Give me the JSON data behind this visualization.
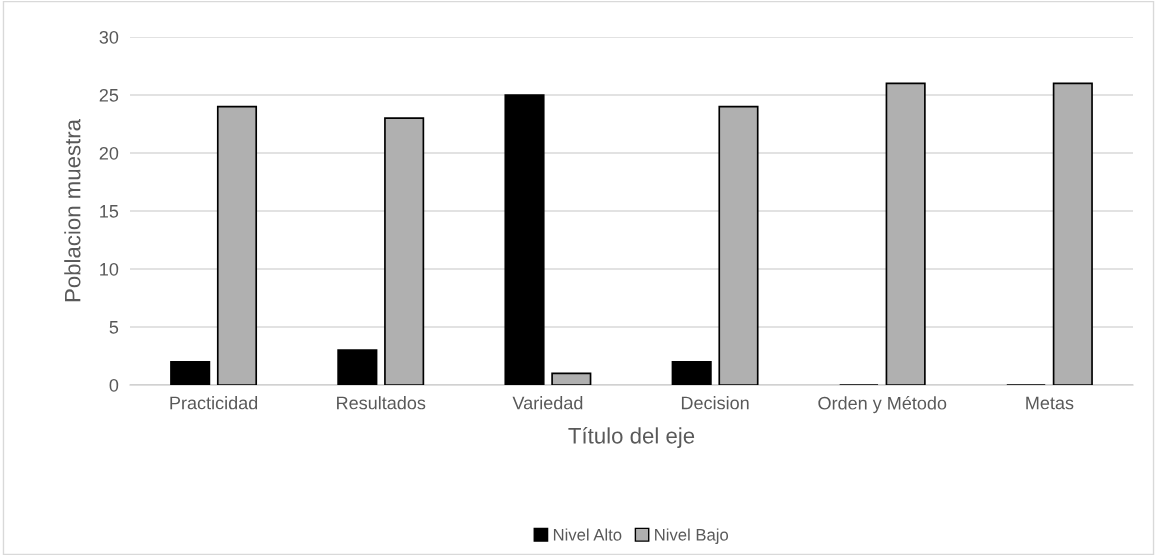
{
  "chart_data": {
    "type": "bar",
    "xlabel": "Título del eje",
    "ylabel": "Poblacion muestra",
    "categories": [
      "Practicidad",
      "Resultados",
      "Variedad",
      "Decision",
      "Orden y Método",
      "Metas"
    ],
    "series": [
      {
        "name": "Nivel Alto",
        "color": "#000000",
        "values": [
          2,
          3,
          25,
          2,
          0,
          0
        ]
      },
      {
        "name": "Nivel Bajo",
        "color": "#b0b0b0",
        "values": [
          24,
          23,
          1,
          24,
          26,
          26
        ]
      }
    ],
    "ylim": [
      0,
      30
    ],
    "yticks": [
      0,
      5,
      10,
      15,
      20,
      25,
      30
    ],
    "grid": "y",
    "legend": "bottom"
  }
}
